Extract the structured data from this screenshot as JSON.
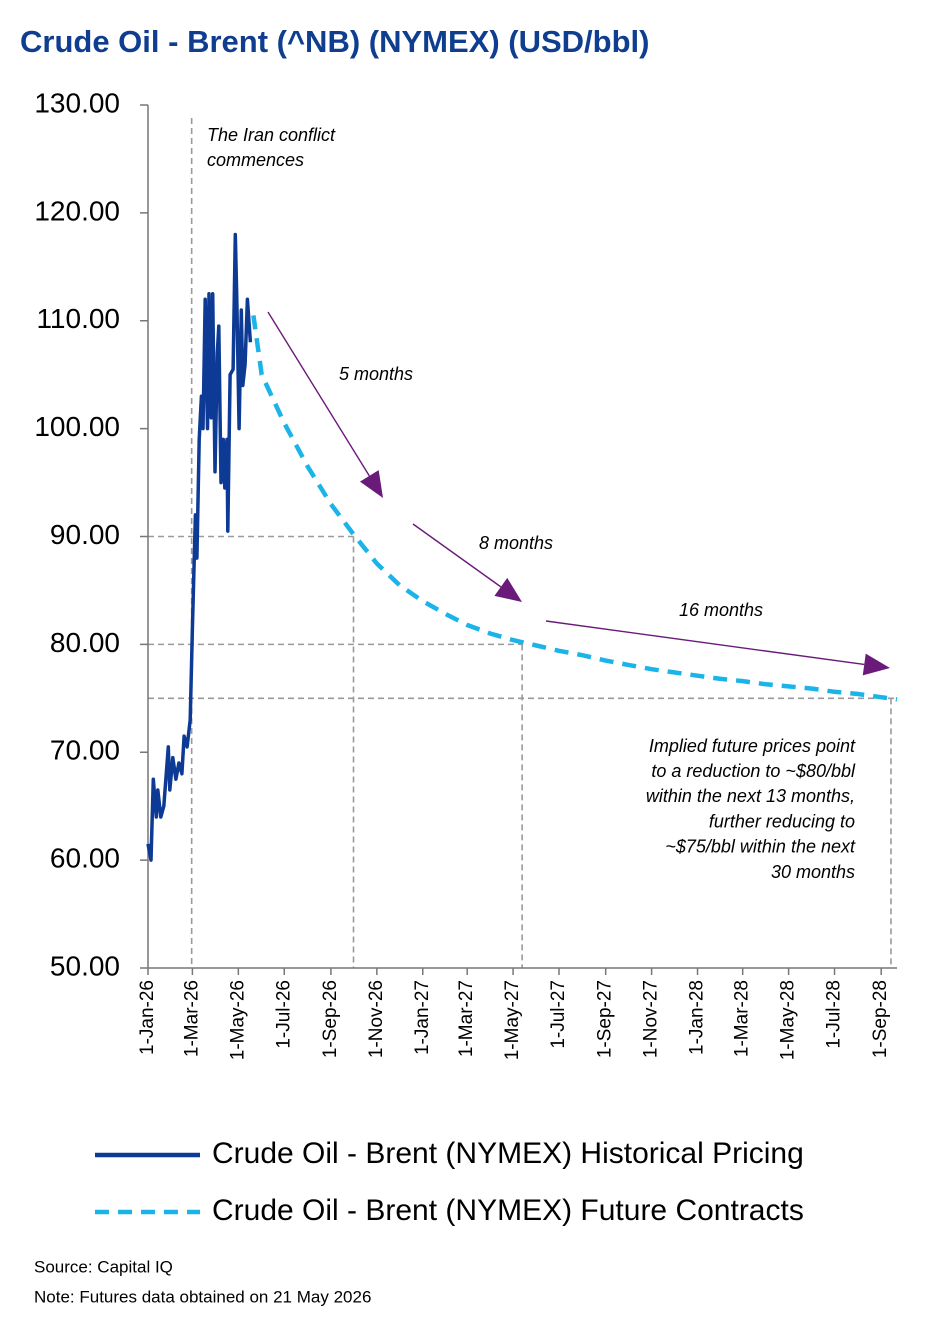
{
  "chart_data": {
    "type": "line",
    "title": "Crude Oil - Brent (^NB) (NYMEX) (USD/bbl)",
    "series": [
      {
        "name": "Crude Oil - Brent (NYMEX) Historical Pricing",
        "color": "#0d3a94",
        "dash": false,
        "x": [
          "2026-01-01",
          "2026-01-05",
          "2026-01-08",
          "2026-01-12",
          "2026-01-14",
          "2026-01-18",
          "2026-01-22",
          "2026-01-28",
          "2026-01-30",
          "2026-02-03",
          "2026-02-07",
          "2026-02-11",
          "2026-02-15",
          "2026-02-18",
          "2026-02-22",
          "2026-02-26",
          "2026-03-01",
          "2026-03-05",
          "2026-03-07",
          "2026-03-10",
          "2026-03-13",
          "2026-03-15",
          "2026-03-18",
          "2026-03-21",
          "2026-03-23",
          "2026-03-26",
          "2026-03-28",
          "2026-03-31",
          "2026-04-03",
          "2026-04-05",
          "2026-04-08",
          "2026-04-11",
          "2026-04-13",
          "2026-04-16",
          "2026-04-17",
          "2026-04-20",
          "2026-04-24",
          "2026-04-27",
          "2026-04-29",
          "2026-05-02",
          "2026-05-05",
          "2026-05-07",
          "2026-05-10",
          "2026-05-13",
          "2026-05-17"
        ],
        "values": [
          61.5,
          60,
          67.5,
          64,
          66.5,
          64,
          65,
          70.5,
          66.5,
          69.5,
          67.5,
          69,
          68,
          71.5,
          70.5,
          73,
          81.5,
          92,
          88,
          99,
          103,
          100,
          112,
          100,
          112.5,
          101,
          112.5,
          96,
          107,
          109.5,
          95,
          99,
          94.5,
          99,
          90.5,
          105,
          105.5,
          118,
          112,
          100,
          111,
          104,
          106,
          112,
          108
        ]
      },
      {
        "name": "Crude Oil - Brent (NYMEX) Future Contracts",
        "color": "#1ab4e8",
        "dash": true,
        "x": [
          "2026-05-21",
          "2026-06-01",
          "2026-07-01",
          "2026-08-01",
          "2026-09-01",
          "2026-10-01",
          "2026-11-01",
          "2026-12-01",
          "2027-01-01",
          "2027-02-01",
          "2027-03-01",
          "2027-04-01",
          "2027-05-01",
          "2027-06-01",
          "2027-07-01",
          "2027-08-01",
          "2027-09-01",
          "2027-10-01",
          "2027-11-01",
          "2027-12-01",
          "2028-01-01",
          "2028-02-01",
          "2028-03-01",
          "2028-04-01",
          "2028-05-01",
          "2028-06-01",
          "2028-07-01",
          "2028-08-01",
          "2028-09-01",
          "2028-09-22"
        ],
        "values": [
          110.5,
          105,
          100.5,
          96.5,
          93,
          90.2,
          87.5,
          85.5,
          84,
          82.8,
          81.8,
          81,
          80.4,
          79.9,
          79.4,
          79,
          78.5,
          78.1,
          77.7,
          77.4,
          77.1,
          76.8,
          76.6,
          76.3,
          76.1,
          75.9,
          75.6,
          75.4,
          75.1,
          74.9
        ]
      }
    ],
    "xlim": [
      "2026-01-01",
      "2028-09-22"
    ],
    "xticks": [
      {
        "value": "2026-01-01",
        "label": "1-Jan-26"
      },
      {
        "value": "2026-03-01",
        "label": "1-Mar-26"
      },
      {
        "value": "2026-05-01",
        "label": "1-May-26"
      },
      {
        "value": "2026-07-01",
        "label": "1-Jul-26"
      },
      {
        "value": "2026-09-01",
        "label": "1-Sep-26"
      },
      {
        "value": "2026-11-01",
        "label": "1-Nov-26"
      },
      {
        "value": "2027-01-01",
        "label": "1-Jan-27"
      },
      {
        "value": "2027-03-01",
        "label": "1-Mar-27"
      },
      {
        "value": "2027-05-01",
        "label": "1-May-27"
      },
      {
        "value": "2027-07-01",
        "label": "1-Jul-27"
      },
      {
        "value": "2027-09-01",
        "label": "1-Sep-27"
      },
      {
        "value": "2027-11-01",
        "label": "1-Nov-27"
      },
      {
        "value": "2028-01-01",
        "label": "1-Jan-28"
      },
      {
        "value": "2028-03-01",
        "label": "1-Mar-28"
      },
      {
        "value": "2028-05-01",
        "label": "1-May-28"
      },
      {
        "value": "2028-07-01",
        "label": "1-Jul-28"
      },
      {
        "value": "2028-09-01",
        "label": "1-Sep-28"
      }
    ],
    "ylim": [
      50,
      130
    ],
    "yticks": [
      {
        "value": 50,
        "label": "50.00"
      },
      {
        "value": 60,
        "label": "60.00"
      },
      {
        "value": 70,
        "label": "70.00"
      },
      {
        "value": 80,
        "label": "80.00"
      },
      {
        "value": 90,
        "label": "90.00"
      },
      {
        "value": 100,
        "label": "100.00"
      },
      {
        "value": 110,
        "label": "110.00"
      },
      {
        "value": 120,
        "label": "120.00"
      },
      {
        "value": 130,
        "label": "130.00"
      }
    ],
    "guides": [
      {
        "x": "2026-10-01",
        "y": 90
      },
      {
        "x": "2027-05-13",
        "y": 80
      },
      {
        "x": "2028-09-14",
        "y": 75
      }
    ],
    "event_line": {
      "x": "2026-02-28",
      "lines": [
        "The Iran conflict",
        "commences"
      ]
    },
    "arrow_labels": [
      "5 months",
      "8 months",
      "16 months"
    ],
    "note_lines": [
      "Implied future prices point",
      "to a reduction to ~$80/bbl",
      "within the next 13 months,",
      "further reducing to",
      "~$75/bbl within the next",
      "30 months"
    ],
    "source": "Source: Capital IQ",
    "footnote": "Note: Futures data obtained on 21 May 2026"
  }
}
